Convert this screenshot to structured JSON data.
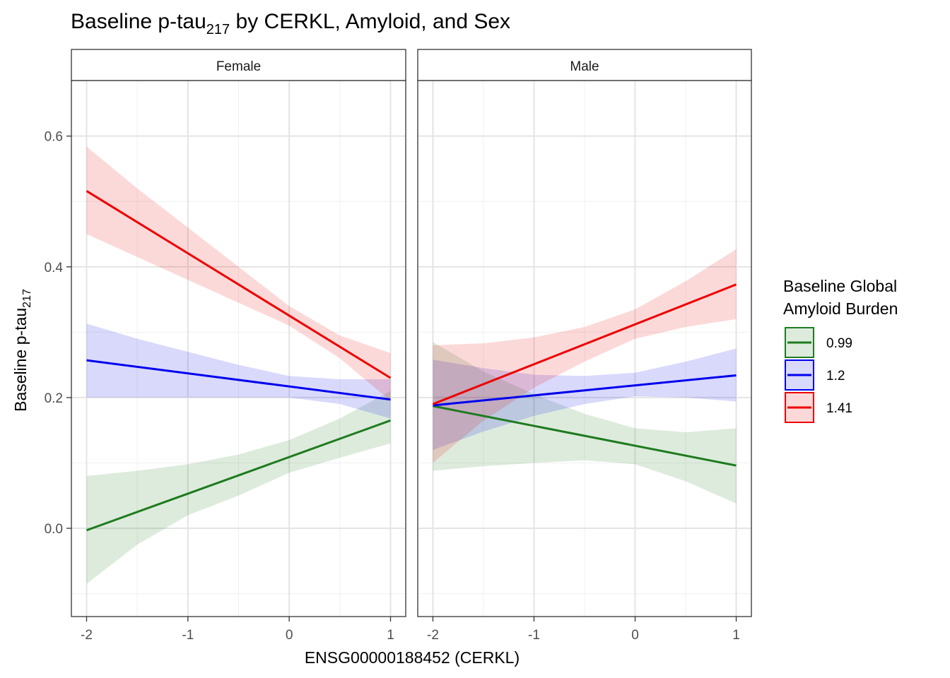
{
  "chart_data": {
    "type": "line",
    "title": {
      "main": "Baseline p-tau",
      "sub": "217",
      "rest": " by CERKL, Amyloid, and Sex"
    },
    "xlabel": "ENSG00000188452 (CERKL)",
    "ylabel": {
      "main": "Baseline p-tau",
      "sub": "217"
    },
    "xlim": [
      -2.15,
      1.15
    ],
    "ylim": [
      -0.135,
      0.685
    ],
    "x_ticks": [
      -2,
      -1,
      0,
      1
    ],
    "x_tick_labels": [
      "-2",
      "-1",
      "0",
      "1"
    ],
    "y_ticks": [
      0.0,
      0.2,
      0.4,
      0.6
    ],
    "y_tick_labels": [
      "0.0",
      "0.2",
      "0.4",
      "0.6"
    ],
    "grid": true,
    "legend": {
      "title_lines": [
        "Baseline Global",
        "Amyloid Burden"
      ],
      "placement": "right"
    },
    "band_x": [
      -2,
      -1.5,
      -1,
      -0.5,
      0,
      0.5,
      1
    ],
    "panels": [
      {
        "label": "Female",
        "series": [
          {
            "name": "0.99",
            "color": "#1e7b1e",
            "x": [
              -2,
              1
            ],
            "y": [
              -0.003,
              0.165
            ],
            "band_lower": [
              -0.085,
              -0.025,
              0.02,
              0.05,
              0.085,
              0.108,
              0.13
            ],
            "band_upper": [
              0.08,
              0.088,
              0.098,
              0.113,
              0.135,
              0.168,
              0.21
            ]
          },
          {
            "name": "1.2",
            "color": "#0000ee",
            "x": [
              -2,
              1
            ],
            "y": [
              0.257,
              0.197
            ],
            "band_lower": [
              0.2,
              0.2,
              0.2,
              0.2,
              0.2,
              0.19,
              0.168
            ],
            "band_upper": [
              0.313,
              0.29,
              0.27,
              0.25,
              0.233,
              0.228,
              0.228
            ]
          },
          {
            "name": "1.41",
            "color": "#ee0000",
            "x": [
              -2,
              1
            ],
            "y": [
              0.516,
              0.23
            ],
            "band_lower": [
              0.45,
              0.415,
              0.38,
              0.345,
              0.31,
              0.26,
              0.195
            ],
            "band_upper": [
              0.584,
              0.52,
              0.46,
              0.4,
              0.34,
              0.295,
              0.268
            ]
          }
        ]
      },
      {
        "label": "Male",
        "series": [
          {
            "name": "0.99",
            "color": "#1e7b1e",
            "x": [
              -2,
              1
            ],
            "y": [
              0.187,
              0.096
            ],
            "band_lower": [
              0.088,
              0.095,
              0.1,
              0.104,
              0.098,
              0.072,
              0.038
            ],
            "band_upper": [
              0.285,
              0.24,
              0.205,
              0.175,
              0.153,
              0.147,
              0.153
            ]
          },
          {
            "name": "1.2",
            "color": "#0000ee",
            "x": [
              -2,
              1
            ],
            "y": [
              0.188,
              0.234
            ],
            "band_lower": [
              0.12,
              0.148,
              0.172,
              0.19,
              0.202,
              0.2,
              0.194
            ],
            "band_upper": [
              0.258,
              0.245,
              0.235,
              0.233,
              0.238,
              0.255,
              0.275
            ]
          },
          {
            "name": "1.41",
            "color": "#ee0000",
            "x": [
              -2,
              1
            ],
            "y": [
              0.19,
              0.373
            ],
            "band_lower": [
              0.1,
              0.165,
              0.215,
              0.255,
              0.29,
              0.308,
              0.32
            ],
            "band_upper": [
              0.28,
              0.283,
              0.292,
              0.308,
              0.335,
              0.378,
              0.427
            ]
          }
        ]
      }
    ]
  }
}
